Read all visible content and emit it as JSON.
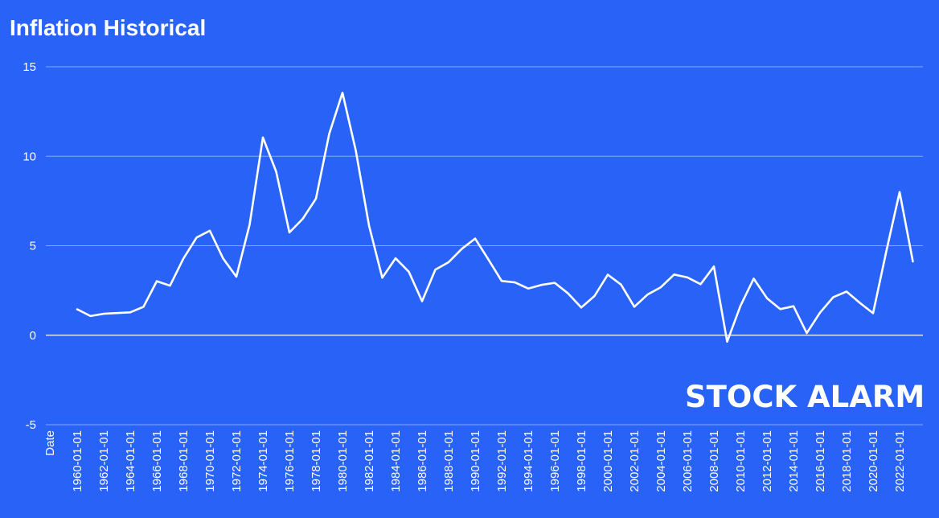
{
  "chart_data": {
    "type": "line",
    "title": "Inflation Historical",
    "xlabel": "Date",
    "ylabel": "",
    "ylim": [
      -5,
      15
    ],
    "yticks": [
      15,
      10,
      5,
      0,
      -5
    ],
    "grid": true,
    "line_color": "#ffffff",
    "background_color": "#2962f6",
    "x_tick_labels": [
      "1960-01-01",
      "1962-01-01",
      "1964-01-01",
      "1966-01-01",
      "1968-01-01",
      "1970-01-01",
      "1972-01-01",
      "1974-01-01",
      "1976-01-01",
      "1978-01-01",
      "1980-01-01",
      "1982-01-01",
      "1984-01-01",
      "1986-01-01",
      "1988-01-01",
      "1990-01-01",
      "1992-01-01",
      "1994-01-01",
      "1996-01-01",
      "1998-01-01",
      "2000-01-01",
      "2002-01-01",
      "2004-01-01",
      "2006-01-01",
      "2008-01-01",
      "2010-01-01",
      "2012-01-01",
      "2014-01-01",
      "2016-01-01",
      "2018-01-01",
      "2020-01-01",
      "2022-01-01"
    ],
    "x": [
      "1960-01-01",
      "1961-01-01",
      "1962-01-01",
      "1963-01-01",
      "1964-01-01",
      "1965-01-01",
      "1966-01-01",
      "1967-01-01",
      "1968-01-01",
      "1969-01-01",
      "1970-01-01",
      "1971-01-01",
      "1972-01-01",
      "1973-01-01",
      "1974-01-01",
      "1975-01-01",
      "1976-01-01",
      "1977-01-01",
      "1978-01-01",
      "1979-01-01",
      "1980-01-01",
      "1981-01-01",
      "1982-01-01",
      "1983-01-01",
      "1984-01-01",
      "1985-01-01",
      "1986-01-01",
      "1987-01-01",
      "1988-01-01",
      "1989-01-01",
      "1990-01-01",
      "1991-01-01",
      "1992-01-01",
      "1993-01-01",
      "1994-01-01",
      "1995-01-01",
      "1996-01-01",
      "1997-01-01",
      "1998-01-01",
      "1999-01-01",
      "2000-01-01",
      "2001-01-01",
      "2002-01-01",
      "2003-01-01",
      "2004-01-01",
      "2005-01-01",
      "2006-01-01",
      "2007-01-01",
      "2008-01-01",
      "2009-01-01",
      "2010-01-01",
      "2011-01-01",
      "2012-01-01",
      "2013-01-01",
      "2014-01-01",
      "2015-01-01",
      "2016-01-01",
      "2017-01-01",
      "2018-01-01",
      "2019-01-01",
      "2020-01-01",
      "2021-01-01",
      "2022-01-01",
      "2023-01-01"
    ],
    "values": [
      1.45,
      1.07,
      1.2,
      1.24,
      1.28,
      1.59,
      3.02,
      2.77,
      4.27,
      5.46,
      5.84,
      4.29,
      3.27,
      6.18,
      11.05,
      9.14,
      5.74,
      6.5,
      7.63,
      11.25,
      13.55,
      10.33,
      6.13,
      3.21,
      4.3,
      3.55,
      1.9,
      3.66,
      4.08,
      4.83,
      5.4,
      4.23,
      3.03,
      2.95,
      2.61,
      2.81,
      2.93,
      2.34,
      1.55,
      2.19,
      3.38,
      2.83,
      1.59,
      2.27,
      2.68,
      3.39,
      3.23,
      2.85,
      3.84,
      -0.36,
      1.64,
      3.16,
      2.07,
      1.46,
      1.62,
      0.12,
      1.26,
      2.13,
      2.44,
      1.81,
      1.23,
      4.7,
      8.0,
      4.12
    ]
  },
  "watermark": {
    "text": "STOCK ALARM"
  }
}
